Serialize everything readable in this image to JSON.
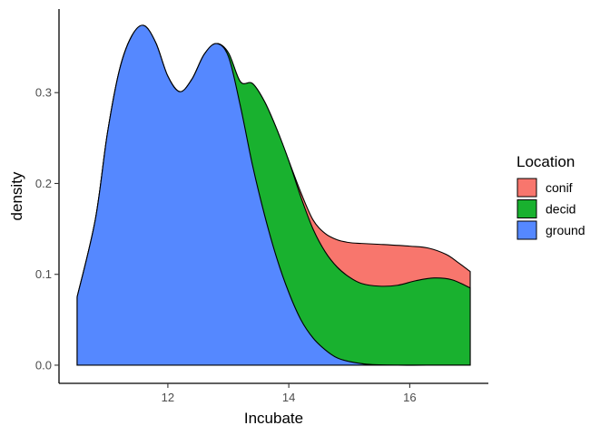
{
  "chart_data": {
    "type": "area",
    "title": "",
    "xlabel": "Incubate",
    "ylabel": "density",
    "xlim": [
      10.2,
      17.3
    ],
    "ylim": [
      -0.02,
      0.392
    ],
    "x_ticks": [
      12,
      14,
      16
    ],
    "y_ticks": [
      0.0,
      0.1,
      0.2,
      0.3
    ],
    "x_tick_labels": [
      "12",
      "14",
      "16"
    ],
    "y_tick_labels": [
      "0.0",
      "0.1",
      "0.2",
      "0.3"
    ],
    "grid": false,
    "legend": {
      "title": "Location",
      "placement": "right"
    },
    "stacked": true,
    "series": [
      {
        "name": "conif",
        "color": "#f8766d",
        "points": [
          [
            10.5,
            0.075
          ],
          [
            10.8,
            0.16
          ],
          [
            11.0,
            0.255
          ],
          [
            11.2,
            0.325
          ],
          [
            11.4,
            0.362
          ],
          [
            11.6,
            0.374
          ],
          [
            11.8,
            0.355
          ],
          [
            12.0,
            0.318
          ],
          [
            12.2,
            0.301
          ],
          [
            12.4,
            0.315
          ],
          [
            12.6,
            0.342
          ],
          [
            12.8,
            0.354
          ],
          [
            13.0,
            0.344
          ],
          [
            13.2,
            0.312
          ],
          [
            13.4,
            0.31
          ],
          [
            13.6,
            0.29
          ],
          [
            13.8,
            0.26
          ],
          [
            14.0,
            0.225
          ],
          [
            14.2,
            0.19
          ],
          [
            14.4,
            0.16
          ],
          [
            14.6,
            0.145
          ],
          [
            14.8,
            0.138
          ],
          [
            15.0,
            0.135
          ],
          [
            15.2,
            0.134
          ],
          [
            15.5,
            0.133
          ],
          [
            16.0,
            0.131
          ],
          [
            16.3,
            0.129
          ],
          [
            16.6,
            0.122
          ],
          [
            16.8,
            0.113
          ],
          [
            17.0,
            0.103
          ]
        ]
      },
      {
        "name": "decid",
        "color": "#19b12f",
        "points": [
          [
            10.5,
            0.075
          ],
          [
            10.8,
            0.16
          ],
          [
            11.0,
            0.255
          ],
          [
            11.2,
            0.325
          ],
          [
            11.4,
            0.362
          ],
          [
            11.6,
            0.374
          ],
          [
            11.8,
            0.355
          ],
          [
            12.0,
            0.318
          ],
          [
            12.2,
            0.301
          ],
          [
            12.4,
            0.315
          ],
          [
            12.6,
            0.342
          ],
          [
            12.8,
            0.354
          ],
          [
            13.0,
            0.344
          ],
          [
            13.2,
            0.312
          ],
          [
            13.4,
            0.31
          ],
          [
            13.6,
            0.29
          ],
          [
            13.8,
            0.26
          ],
          [
            14.0,
            0.225
          ],
          [
            14.2,
            0.185
          ],
          [
            14.4,
            0.15
          ],
          [
            14.6,
            0.125
          ],
          [
            14.8,
            0.108
          ],
          [
            15.0,
            0.097
          ],
          [
            15.2,
            0.09
          ],
          [
            15.5,
            0.087
          ],
          [
            15.8,
            0.088
          ],
          [
            16.1,
            0.093
          ],
          [
            16.4,
            0.096
          ],
          [
            16.7,
            0.094
          ],
          [
            17.0,
            0.085
          ]
        ]
      },
      {
        "name": "ground",
        "color": "#5588ff",
        "points": [
          [
            10.5,
            0.075
          ],
          [
            10.8,
            0.16
          ],
          [
            11.0,
            0.255
          ],
          [
            11.2,
            0.325
          ],
          [
            11.4,
            0.362
          ],
          [
            11.6,
            0.374
          ],
          [
            11.8,
            0.355
          ],
          [
            12.0,
            0.318
          ],
          [
            12.2,
            0.301
          ],
          [
            12.4,
            0.315
          ],
          [
            12.6,
            0.342
          ],
          [
            12.8,
            0.354
          ],
          [
            13.0,
            0.34
          ],
          [
            13.2,
            0.285
          ],
          [
            13.4,
            0.22
          ],
          [
            13.6,
            0.165
          ],
          [
            13.8,
            0.118
          ],
          [
            14.0,
            0.08
          ],
          [
            14.2,
            0.05
          ],
          [
            14.4,
            0.03
          ],
          [
            14.6,
            0.017
          ],
          [
            14.8,
            0.008
          ],
          [
            15.0,
            0.004
          ],
          [
            15.3,
            0.001
          ],
          [
            15.8,
            0.0
          ],
          [
            16.5,
            0.0
          ],
          [
            17.0,
            0.0
          ]
        ]
      }
    ]
  }
}
